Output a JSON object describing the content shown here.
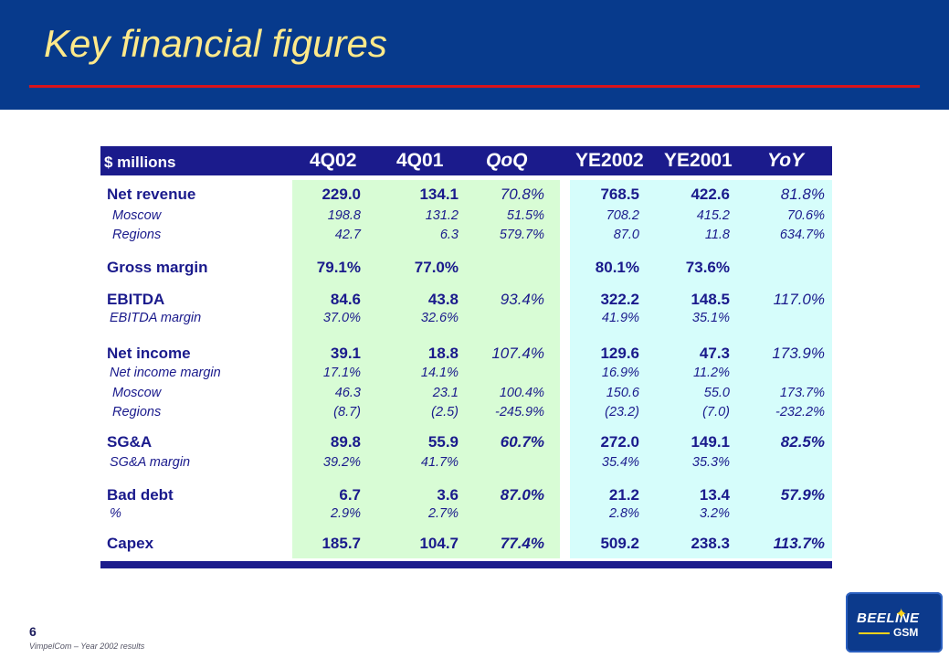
{
  "title": "Key financial figures",
  "table": {
    "headers": [
      "$ millions",
      "4Q02",
      "4Q01",
      "QoQ",
      "YE2002",
      "YE2001",
      "YoY"
    ],
    "rows": [
      {
        "label": "Net revenue",
        "kind": "main",
        "q4_02": "229.0",
        "q4_01": "134.1",
        "qoq": "70.8%",
        "ye2002": "768.5",
        "ye2001": "422.6",
        "yoy": "81.8%"
      },
      {
        "label": "Moscow",
        "kind": "sub",
        "q4_02": "198.8",
        "q4_01": "131.2",
        "qoq": "51.5%",
        "ye2002": "708.2",
        "ye2001": "415.2",
        "yoy": "70.6%"
      },
      {
        "label": "Regions",
        "kind": "sub",
        "q4_02": "42.7",
        "q4_01": "6.3",
        "qoq": "579.7%",
        "ye2002": "87.0",
        "ye2001": "11.8",
        "yoy": "634.7%"
      },
      {
        "label": "Gross margin",
        "kind": "main",
        "q4_02": "79.1%",
        "q4_01": "77.0%",
        "qoq": "",
        "ye2002": "80.1%",
        "ye2001": "73.6%",
        "yoy": ""
      },
      {
        "label": "EBITDA",
        "kind": "main",
        "q4_02": "84.6",
        "q4_01": "43.8",
        "qoq": "93.4%",
        "ye2002": "322.2",
        "ye2001": "148.5",
        "yoy": "117.0%"
      },
      {
        "label": "EBITDA margin",
        "kind": "sub",
        "q4_02": "37.0%",
        "q4_01": "32.6%",
        "qoq": "",
        "ye2002": "41.9%",
        "ye2001": "35.1%",
        "yoy": ""
      },
      {
        "label": "Net income",
        "kind": "main",
        "q4_02": "39.1",
        "q4_01": "18.8",
        "qoq": "107.4%",
        "ye2002": "129.6",
        "ye2001": "47.3",
        "yoy": "173.9%"
      },
      {
        "label": "Net income margin",
        "kind": "sub",
        "q4_02": "17.1%",
        "q4_01": "14.1%",
        "qoq": "",
        "ye2002": "16.9%",
        "ye2001": "11.2%",
        "yoy": ""
      },
      {
        "label": "Moscow",
        "kind": "sub",
        "q4_02": "46.3",
        "q4_01": "23.1",
        "qoq": "100.4%",
        "ye2002": "150.6",
        "ye2001": "55.0",
        "yoy": "173.7%"
      },
      {
        "label": "Regions",
        "kind": "sub",
        "q4_02": "(8.7)",
        "q4_01": "(2.5)",
        "qoq": "-245.9%",
        "ye2002": "(23.2)",
        "ye2001": "(7.0)",
        "yoy": "-232.2%"
      },
      {
        "label": "SG&A",
        "kind": "main",
        "q4_02": "89.8",
        "q4_01": "55.9",
        "qoq": "60.7%",
        "ye2002": "272.0",
        "ye2001": "149.1",
        "yoy": "82.5%"
      },
      {
        "label": "SG&A margin",
        "kind": "sub",
        "q4_02": "39.2%",
        "q4_01": "41.7%",
        "qoq": "",
        "ye2002": "35.4%",
        "ye2001": "35.3%",
        "yoy": ""
      },
      {
        "label": "Bad debt",
        "kind": "main",
        "q4_02": "6.7",
        "q4_01": "3.6",
        "qoq": "87.0%",
        "ye2002": "21.2",
        "ye2001": "13.4",
        "yoy": "57.9%"
      },
      {
        "label": "%",
        "kind": "sub",
        "q4_02": "2.9%",
        "q4_01": "2.7%",
        "qoq": "",
        "ye2002": "2.8%",
        "ye2001": "3.2%",
        "yoy": ""
      },
      {
        "label": "Capex",
        "kind": "main",
        "q4_02": "185.7",
        "q4_01": "104.7",
        "qoq": "77.4%",
        "ye2002": "509.2",
        "ye2001": "238.3",
        "yoy": "113.7%"
      }
    ]
  },
  "footer": {
    "page_number": "6",
    "text": "VimpelCom – Year 2002 results"
  },
  "logo": {
    "top": "BEELINE",
    "bottom": "GSM"
  },
  "colors": {
    "header_bg": "#073a8c",
    "title": "#ffe98a",
    "accent_line": "#d8131b",
    "table_bar": "#1b1b8c",
    "green_col": "#d8fcd5",
    "cyan_col": "#d6fdfb",
    "text": "#1a1a8c"
  }
}
